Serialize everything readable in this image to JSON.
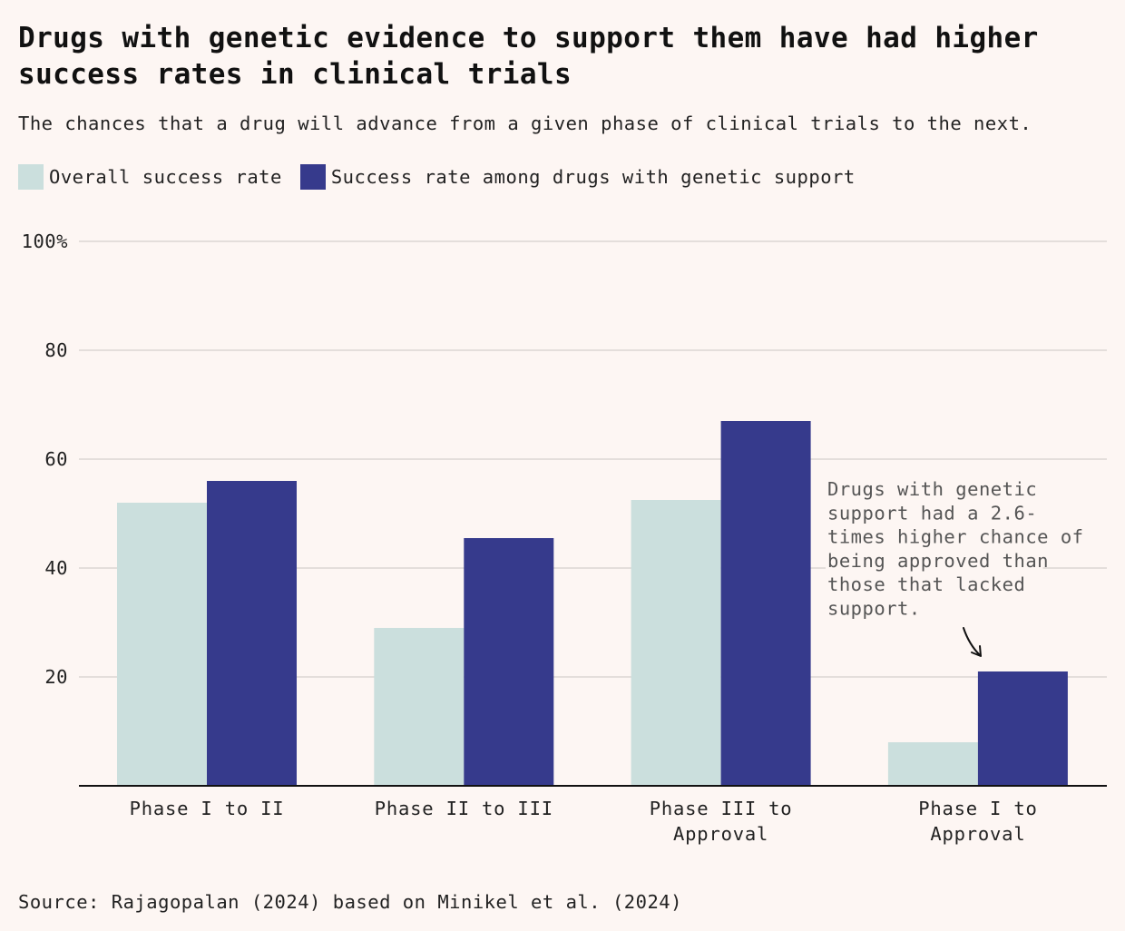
{
  "title": "Drugs with genetic evidence to support them have had higher success rates in clinical trials",
  "subtitle": "The chances that a drug will advance from a given phase of clinical trials to the next.",
  "source": "Source: Rajagopalan (2024) based on Minikel et al. (2024)",
  "colors": {
    "background": "#fdf6f3",
    "overall": "#cbdfdd",
    "genetic": "#363a8c",
    "grid": "#dcd6d3",
    "axis": "#111111",
    "text": "#222222",
    "annotation": "#555555"
  },
  "chart_data": {
    "type": "bar",
    "title": "Drugs with genetic evidence to support them have had higher success rates in clinical trials",
    "subtitle": "The chances that a drug will advance from a given phase of clinical trials to the next.",
    "xlabel": "",
    "ylabel": "",
    "ylim": [
      0,
      100
    ],
    "yticks": [
      20,
      40,
      60,
      80,
      100
    ],
    "ytick_labels": [
      "20",
      "40",
      "60",
      "80",
      "100%"
    ],
    "grid": true,
    "legend_position": "top-left",
    "categories": [
      [
        "Phase I to II"
      ],
      [
        "Phase II to III"
      ],
      [
        "Phase III to",
        "Approval"
      ],
      [
        "Phase I to",
        "Approval"
      ]
    ],
    "series": [
      {
        "name": "Overall success rate",
        "color_key": "overall",
        "values": [
          52,
          29,
          52.5,
          8
        ]
      },
      {
        "name": "Success rate among drugs with genetic support",
        "color_key": "genetic",
        "values": [
          56,
          45.5,
          67,
          21
        ]
      }
    ],
    "annotation": {
      "lines": [
        "Drugs with genetic",
        "support had a 2.6-",
        "times higher chance of",
        "being approved than",
        "those that lacked",
        "support."
      ],
      "target_category_index": 3,
      "target_series_index": 1
    }
  }
}
